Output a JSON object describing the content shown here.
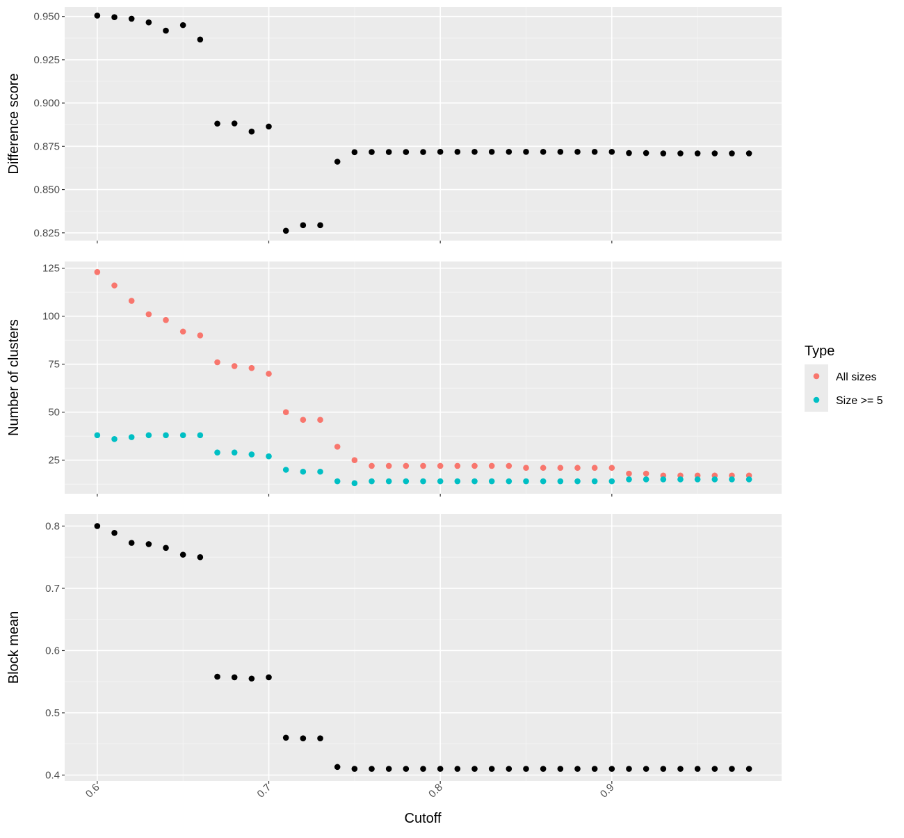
{
  "colors": {
    "panel_bg": "#EBEBEB",
    "grid_major": "#FFFFFF",
    "grid_minor": "#F5F5F5",
    "tick": "#333333",
    "point_black": "#000000",
    "all_sizes": "#F8766D",
    "size_ge_5": "#00BFC4"
  },
  "x_axis_title": "Cutoff",
  "legend": {
    "title": "Type",
    "items": [
      {
        "label": "All sizes",
        "color": "#F8766D"
      },
      {
        "label": "Size >= 5",
        "color": "#00BFC4"
      }
    ]
  },
  "chart_data": [
    {
      "type": "scatter",
      "ylabel": "Difference score",
      "xlim": [
        0.581,
        0.999
      ],
      "ylim": [
        0.8205,
        0.9555
      ],
      "x_ticks": [
        0.6,
        0.7,
        0.8,
        0.9
      ],
      "x_tick_labels": [],
      "y_ticks": [
        0.825,
        0.85,
        0.875,
        0.9,
        0.925,
        0.95
      ],
      "y_tick_labels": [
        "0.825",
        "0.850",
        "0.875",
        "0.900",
        "0.925",
        "0.950"
      ],
      "grid": true,
      "series": [
        {
          "color": "#000000",
          "x": [
            0.6,
            0.61,
            0.62,
            0.63,
            0.64,
            0.65,
            0.66,
            0.67,
            0.68,
            0.69,
            0.7,
            0.71,
            0.72,
            0.73,
            0.74,
            0.75,
            0.76,
            0.77,
            0.78,
            0.79,
            0.8,
            0.81,
            0.82,
            0.83,
            0.84,
            0.85,
            0.86,
            0.87,
            0.88,
            0.89,
            0.9,
            0.91,
            0.92,
            0.93,
            0.94,
            0.95,
            0.96,
            0.97,
            0.98
          ],
          "y": [
            0.9505,
            0.9496,
            0.9487,
            0.9466,
            0.9418,
            0.945,
            0.9367,
            0.8881,
            0.8882,
            0.8835,
            0.8864,
            0.8262,
            0.8294,
            0.8294,
            0.8661,
            0.8716,
            0.8717,
            0.8717,
            0.8717,
            0.8717,
            0.8718,
            0.8718,
            0.8718,
            0.8718,
            0.8718,
            0.8718,
            0.8718,
            0.8718,
            0.8718,
            0.8718,
            0.8718,
            0.8711,
            0.8711,
            0.8709,
            0.8709,
            0.8709,
            0.8709,
            0.8709,
            0.8709
          ]
        }
      ]
    },
    {
      "type": "scatter",
      "ylabel": "Number of clusters",
      "xlim": [
        0.581,
        0.999
      ],
      "ylim": [
        7.5,
        128.5
      ],
      "x_ticks": [
        0.6,
        0.7,
        0.8,
        0.9
      ],
      "x_tick_labels": [],
      "y_ticks": [
        25,
        50,
        75,
        100,
        125
      ],
      "y_tick_labels": [
        "25",
        "50",
        "75",
        "100",
        "125"
      ],
      "grid": true,
      "series": [
        {
          "name": "All sizes",
          "color": "#F8766D",
          "x": [
            0.6,
            0.61,
            0.62,
            0.63,
            0.64,
            0.65,
            0.66,
            0.67,
            0.68,
            0.69,
            0.7,
            0.71,
            0.72,
            0.73,
            0.74,
            0.75,
            0.76,
            0.77,
            0.78,
            0.79,
            0.8,
            0.81,
            0.82,
            0.83,
            0.84,
            0.85,
            0.86,
            0.87,
            0.88,
            0.89,
            0.9,
            0.91,
            0.92,
            0.93,
            0.94,
            0.95,
            0.96,
            0.97,
            0.98
          ],
          "y": [
            123,
            116,
            108,
            101,
            98,
            92,
            90,
            76,
            74,
            73,
            70,
            50,
            46,
            46,
            32,
            25,
            22,
            22,
            22,
            22,
            22,
            22,
            22,
            22,
            22,
            21,
            21,
            21,
            21,
            21,
            21,
            18,
            18,
            17,
            17,
            17,
            17,
            17,
            17
          ]
        },
        {
          "name": "Size >= 5",
          "color": "#00BFC4",
          "x": [
            0.6,
            0.61,
            0.62,
            0.63,
            0.64,
            0.65,
            0.66,
            0.67,
            0.68,
            0.69,
            0.7,
            0.71,
            0.72,
            0.73,
            0.74,
            0.75,
            0.76,
            0.77,
            0.78,
            0.79,
            0.8,
            0.81,
            0.82,
            0.83,
            0.84,
            0.85,
            0.86,
            0.87,
            0.88,
            0.89,
            0.9,
            0.91,
            0.92,
            0.93,
            0.94,
            0.95,
            0.96,
            0.97,
            0.98
          ],
          "y": [
            38,
            36,
            37,
            38,
            38,
            38,
            38,
            29,
            29,
            28,
            27,
            20,
            19,
            19,
            14,
            13,
            14,
            14,
            14,
            14,
            14,
            14,
            14,
            14,
            14,
            14,
            14,
            14,
            14,
            14,
            14,
            15,
            15,
            15,
            15,
            15,
            15,
            15,
            15
          ]
        }
      ]
    },
    {
      "type": "scatter",
      "ylabel": "Block mean",
      "xlim": [
        0.581,
        0.999
      ],
      "ylim": [
        0.3905,
        0.8195
      ],
      "x_ticks": [
        0.6,
        0.7,
        0.8,
        0.9
      ],
      "x_tick_labels": [
        "0.6",
        "0.7",
        "0.8",
        "0.9"
      ],
      "y_ticks": [
        0.4,
        0.5,
        0.6,
        0.7,
        0.8
      ],
      "y_tick_labels": [
        "0.4",
        "0.5",
        "0.6",
        "0.7",
        "0.8"
      ],
      "grid": true,
      "series": [
        {
          "color": "#000000",
          "x": [
            0.6,
            0.61,
            0.62,
            0.63,
            0.64,
            0.65,
            0.66,
            0.67,
            0.68,
            0.69,
            0.7,
            0.71,
            0.72,
            0.73,
            0.74,
            0.75,
            0.76,
            0.77,
            0.78,
            0.79,
            0.8,
            0.81,
            0.82,
            0.83,
            0.84,
            0.85,
            0.86,
            0.87,
            0.88,
            0.89,
            0.9,
            0.91,
            0.92,
            0.93,
            0.94,
            0.95,
            0.96,
            0.97,
            0.98
          ],
          "y": [
            0.8,
            0.789,
            0.773,
            0.771,
            0.765,
            0.754,
            0.75,
            0.558,
            0.557,
            0.555,
            0.557,
            0.46,
            0.459,
            0.459,
            0.413,
            0.41,
            0.41,
            0.41,
            0.41,
            0.41,
            0.41,
            0.41,
            0.41,
            0.41,
            0.41,
            0.41,
            0.41,
            0.41,
            0.41,
            0.41,
            0.41,
            0.41,
            0.41,
            0.41,
            0.41,
            0.41,
            0.41,
            0.41,
            0.41
          ]
        }
      ]
    }
  ]
}
